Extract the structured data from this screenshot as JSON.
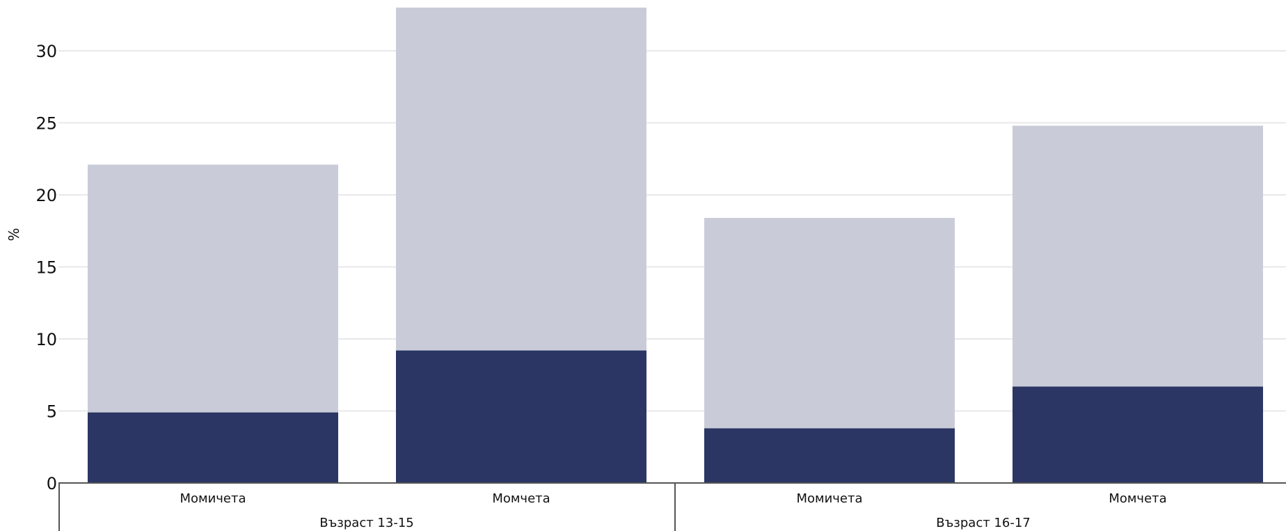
{
  "chart_data": {
    "type": "bar",
    "stacked": true,
    "xlabel": "",
    "ylabel": "%",
    "ylim": [
      0,
      33
    ],
    "yticks": [
      0,
      5,
      10,
      15,
      20,
      25,
      30
    ],
    "grid": true,
    "groups": [
      {
        "label": "Възраст 13-15",
        "categories": [
          "Момичета",
          "Момчета"
        ]
      },
      {
        "label": "Възраст 16-17",
        "categories": [
          "Момичета",
          "Момчета"
        ]
      }
    ],
    "categories": [
      "Момичета",
      "Момчета",
      "Момичета",
      "Момчета"
    ],
    "series": [
      {
        "values": [
          4.9,
          9.2,
          3.8,
          6.7
        ],
        "color": "#2b3664"
      },
      {
        "values": [
          17.2,
          23.8,
          14.6,
          18.1
        ],
        "color": "#c9ccd8"
      }
    ],
    "totals": [
      22.1,
      33.0,
      18.4,
      24.8
    ]
  }
}
